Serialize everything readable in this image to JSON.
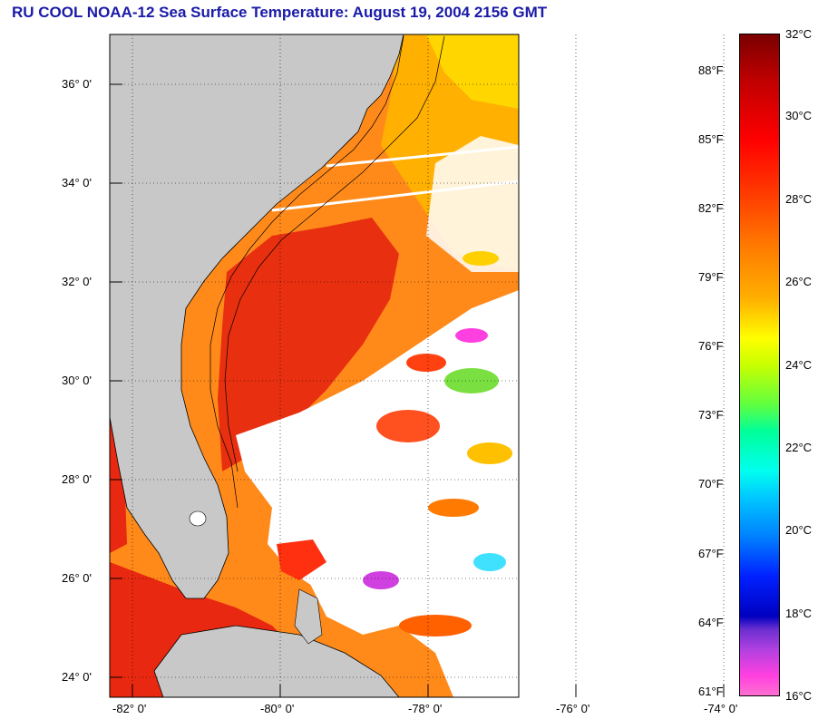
{
  "title": "RU COOL  NOAA-12  Sea Surface Temperature:  August 19, 2004 2156 GMT",
  "map": {
    "lat_ticks": [
      {
        "value": 36,
        "label": "36° 0'"
      },
      {
        "value": 34,
        "label": "34° 0'"
      },
      {
        "value": 32,
        "label": "32° 0'"
      },
      {
        "value": 30,
        "label": "30° 0'"
      },
      {
        "value": 28,
        "label": "28° 0'"
      },
      {
        "value": 26,
        "label": "26° 0'"
      },
      {
        "value": 24,
        "label": "24° 0'"
      }
    ],
    "lon_ticks": [
      {
        "value": -82,
        "label": "-82° 0'"
      },
      {
        "value": -80,
        "label": "-80° 0'"
      },
      {
        "value": -78,
        "label": "-78° 0'"
      },
      {
        "value": -76,
        "label": "-76° 0'"
      },
      {
        "value": -74,
        "label": "-74° 0'"
      }
    ],
    "land_color": "#c8c8c8",
    "ocean_color": "#ff6a10",
    "gulf_stream_color": "#e82810",
    "cloud_color": "#ffffff"
  },
  "colorbar": {
    "fahrenheit": [
      {
        "label": "88°F",
        "value": 88
      },
      {
        "label": "85°F",
        "value": 85
      },
      {
        "label": "82°F",
        "value": 82
      },
      {
        "label": "79°F",
        "value": 79
      },
      {
        "label": "76°F",
        "value": 76
      },
      {
        "label": "73°F",
        "value": 73
      },
      {
        "label": "70°F",
        "value": 70
      },
      {
        "label": "67°F",
        "value": 67
      },
      {
        "label": "64°F",
        "value": 64
      },
      {
        "label": "61°F",
        "value": 61
      }
    ],
    "celsius": [
      {
        "label": "32°C",
        "value": 32
      },
      {
        "label": "30°C",
        "value": 30
      },
      {
        "label": "28°C",
        "value": 28
      },
      {
        "label": "26°C",
        "value": 26
      },
      {
        "label": "24°C",
        "value": 24
      },
      {
        "label": "22°C",
        "value": 22
      },
      {
        "label": "20°C",
        "value": 20
      },
      {
        "label": "18°C",
        "value": 18
      },
      {
        "label": "16°C",
        "value": 16
      }
    ]
  }
}
